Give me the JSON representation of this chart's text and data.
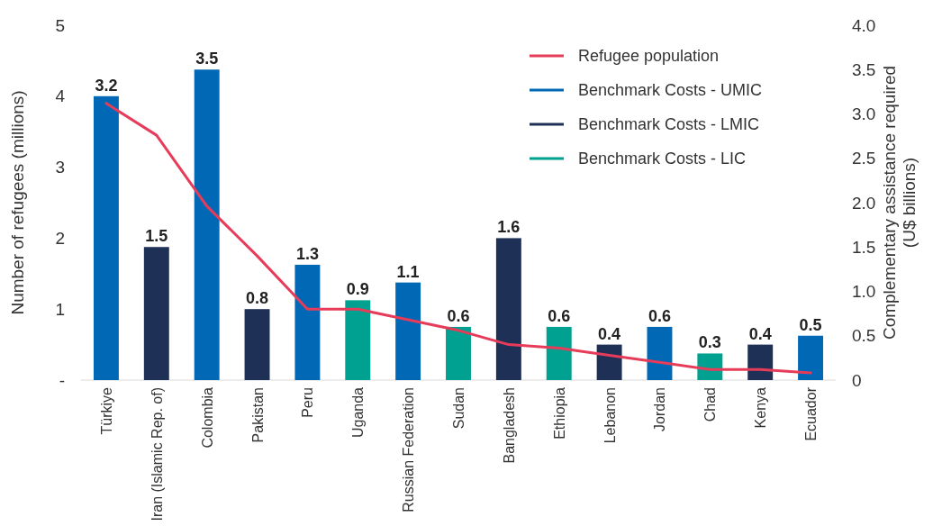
{
  "chart_data": {
    "type": "bar",
    "ylabel": "Number of refugees (millions)",
    "y2label": "Complementary assistance required (U$ billions)",
    "categories": [
      "Türkiye",
      "Iran (Islamic Rep. of)",
      "Colombia",
      "Pakistan",
      "Peru",
      "Uganda",
      "Russian Federation",
      "Sudan",
      "Bangladesh",
      "Ethiopia",
      "Lebanon",
      "Jordan",
      "Chad",
      "Kenya",
      "Ecuador"
    ],
    "series": [
      {
        "name": "Refugee population",
        "type": "line",
        "color": "#e63c5a",
        "axis": "y",
        "values": [
          3.9,
          3.45,
          2.45,
          1.75,
          1.0,
          1.0,
          0.85,
          0.7,
          0.5,
          0.45,
          0.35,
          0.25,
          0.15,
          0.15,
          0.1
        ]
      },
      {
        "name": "Benchmark Costs - UMIC",
        "color": "#0068b4",
        "axis": "y2",
        "values": [
          3.2,
          null,
          3.5,
          null,
          1.3,
          null,
          1.1,
          null,
          null,
          null,
          null,
          0.6,
          null,
          null,
          0.5
        ],
        "value_labels": [
          "3.2",
          null,
          "3.5",
          null,
          "1.3",
          null,
          "1.1",
          null,
          null,
          null,
          null,
          "0.6",
          null,
          null,
          "0.5"
        ]
      },
      {
        "name": "Benchmark Costs - LMIC",
        "color": "#1f3057",
        "axis": "y2",
        "values": [
          null,
          1.5,
          null,
          0.8,
          null,
          null,
          null,
          null,
          1.6,
          null,
          0.4,
          null,
          null,
          0.4,
          null
        ],
        "value_labels": [
          null,
          "1.5",
          null,
          "0.8",
          null,
          null,
          null,
          null,
          "1.6",
          null,
          "0.4",
          null,
          null,
          "0.4",
          null
        ]
      },
      {
        "name": "Benchmark Costs - LIC",
        "color": "#00a190",
        "axis": "y2",
        "values": [
          null,
          null,
          null,
          null,
          null,
          0.9,
          null,
          0.6,
          null,
          0.6,
          null,
          null,
          0.3,
          null,
          null
        ],
        "value_labels": [
          null,
          null,
          null,
          null,
          null,
          "0.9",
          null,
          "0.6",
          null,
          "0.6",
          null,
          null,
          "0.3",
          null,
          null
        ]
      }
    ],
    "legend": "top right",
    "grid": false,
    "ylim": [
      0,
      5
    ],
    "yticks": [
      {
        "value": 0,
        "label": "-"
      },
      1,
      2,
      3,
      4,
      5
    ],
    "y2lim": [
      0,
      4
    ],
    "y2ticks": [
      0,
      0.5,
      {
        "value": 1,
        "label": "1.0"
      },
      1.5,
      {
        "value": 2,
        "label": "2.0"
      },
      2.5,
      {
        "value": 3,
        "label": "3.0"
      },
      3.5,
      {
        "value": 4,
        "label": "4.0"
      }
    ]
  }
}
